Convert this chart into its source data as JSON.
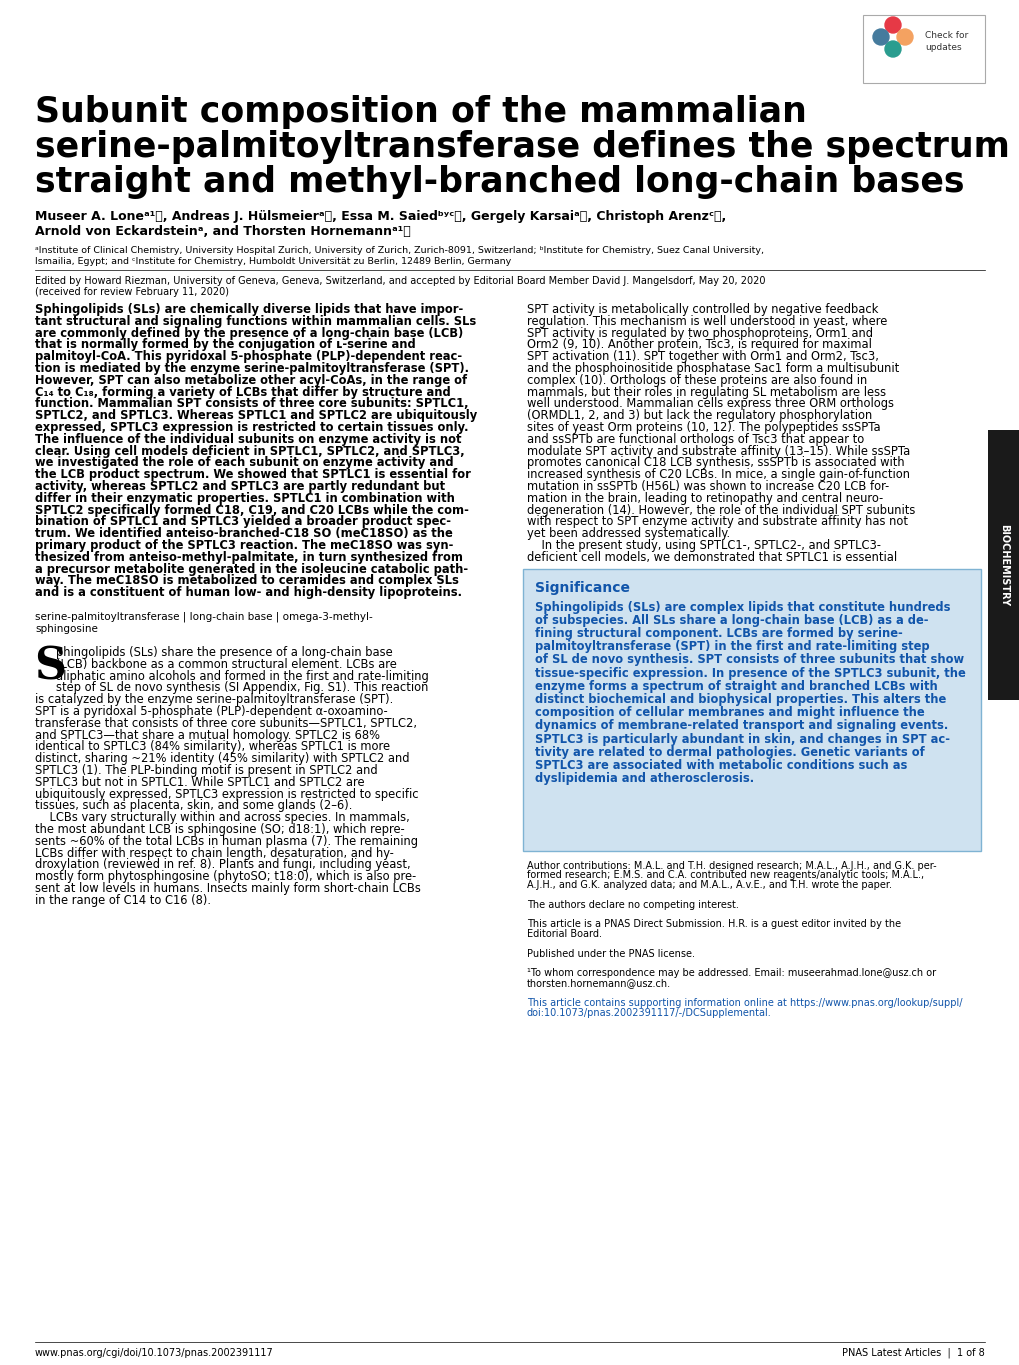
{
  "title_line1": "Subunit composition of the mammalian",
  "title_line2": "serine-palmitoyltransferase defines the spectrum of",
  "title_line3": "straight and methyl-branched long-chain bases",
  "footer_left": "www.pnas.org/cgi/doi/10.1073/pnas.2002391117",
  "footer_right": "PNAS Latest Articles  |  1 of 8",
  "biochem_sidebar": "BIOCHEMISTRY",
  "background_color": "#ffffff",
  "significance_bg": "#cfe2f0",
  "significance_border": "#7fb3d3",
  "significance_title_color": "#1155aa",
  "significance_text_color": "#1155aa",
  "title_color": "#000000",
  "body_color": "#000000",
  "link_color": "#1155aa"
}
